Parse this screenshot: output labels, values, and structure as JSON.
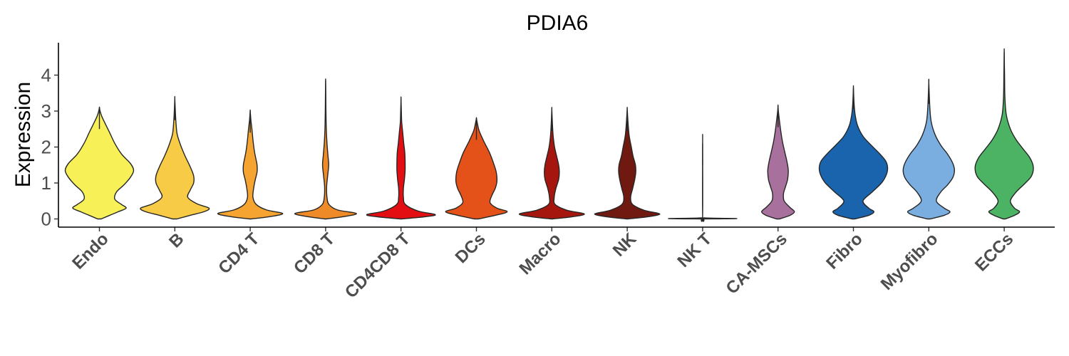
{
  "chart_data": {
    "type": "violin",
    "title": "PDIA6",
    "xlabel": "",
    "ylabel": "Expression",
    "ylim": [
      -0.2,
      4.85
    ],
    "yticks": [
      "0",
      "1",
      "2",
      "3",
      "4"
    ],
    "ytick_values": [
      0,
      1,
      2,
      3,
      4
    ],
    "grid": false,
    "legend": "none",
    "categories": [
      "Endo",
      "B",
      "CD4 T",
      "CD8 T",
      "CD4CD8 T",
      "DCs",
      "Macro",
      "NK",
      "NK T",
      "CA-MSCs",
      "Fibro",
      "Myofibro",
      "ECCs"
    ],
    "series": [
      {
        "category": "Endo",
        "color": "#F7F057",
        "max": 3.1,
        "density": [
          [
            0,
            0.05
          ],
          [
            0.1,
            0.3
          ],
          [
            0.2,
            0.55
          ],
          [
            0.3,
            0.78
          ],
          [
            0.4,
            0.65
          ],
          [
            0.55,
            0.45
          ],
          [
            0.75,
            0.5
          ],
          [
            0.95,
            0.72
          ],
          [
            1.15,
            0.9
          ],
          [
            1.35,
            1.0
          ],
          [
            1.55,
            0.9
          ],
          [
            1.8,
            0.65
          ],
          [
            2.1,
            0.45
          ],
          [
            2.4,
            0.3
          ],
          [
            2.65,
            0.17
          ],
          [
            2.85,
            0.07
          ],
          [
            3.0,
            0.02
          ],
          [
            3.1,
            0.0
          ]
        ]
      },
      {
        "category": "B",
        "color": "#F7CB45",
        "max": 3.35,
        "density": [
          [
            0,
            0.06
          ],
          [
            0.1,
            0.45
          ],
          [
            0.2,
            0.85
          ],
          [
            0.3,
            1.0
          ],
          [
            0.42,
            0.65
          ],
          [
            0.6,
            0.38
          ],
          [
            0.8,
            0.45
          ],
          [
            1.0,
            0.55
          ],
          [
            1.2,
            0.55
          ],
          [
            1.45,
            0.45
          ],
          [
            1.75,
            0.3
          ],
          [
            2.05,
            0.17
          ],
          [
            2.35,
            0.07
          ],
          [
            2.6,
            0.04
          ],
          [
            2.9,
            0.02
          ],
          [
            3.35,
            0.0
          ]
        ]
      },
      {
        "category": "CD4 T",
        "color": "#F5A431",
        "max": 3.0,
        "density": [
          [
            0,
            0.02
          ],
          [
            0.06,
            0.55
          ],
          [
            0.15,
            0.95
          ],
          [
            0.25,
            0.48
          ],
          [
            0.4,
            0.18
          ],
          [
            0.6,
            0.08
          ],
          [
            0.85,
            0.1
          ],
          [
            1.1,
            0.15
          ],
          [
            1.3,
            0.2
          ],
          [
            1.5,
            0.2
          ],
          [
            1.7,
            0.16
          ],
          [
            1.9,
            0.12
          ],
          [
            2.2,
            0.08
          ],
          [
            2.5,
            0.05
          ],
          [
            2.75,
            0.02
          ],
          [
            3.0,
            0.0
          ]
        ]
      },
      {
        "category": "CD8 T",
        "color": "#EE8A27",
        "max": 3.85,
        "density": [
          [
            0,
            0.02
          ],
          [
            0.06,
            0.5
          ],
          [
            0.15,
            0.9
          ],
          [
            0.25,
            0.35
          ],
          [
            0.4,
            0.1
          ],
          [
            0.6,
            0.04
          ],
          [
            0.9,
            0.03
          ],
          [
            1.2,
            0.06
          ],
          [
            1.5,
            0.09
          ],
          [
            1.75,
            0.07
          ],
          [
            2.1,
            0.04
          ],
          [
            2.5,
            0.02
          ],
          [
            3.0,
            0.01
          ],
          [
            3.5,
            0.005
          ],
          [
            3.85,
            0.0
          ]
        ]
      },
      {
        "category": "CD4CD8 T",
        "color": "#E20E12",
        "max": 3.35,
        "density": [
          [
            0,
            0.02
          ],
          [
            0.06,
            0.7
          ],
          [
            0.12,
            1.0
          ],
          [
            0.22,
            0.5
          ],
          [
            0.4,
            0.13
          ],
          [
            0.6,
            0.07
          ],
          [
            0.85,
            0.07
          ],
          [
            1.1,
            0.1
          ],
          [
            1.35,
            0.12
          ],
          [
            1.6,
            0.12
          ],
          [
            1.85,
            0.11
          ],
          [
            2.1,
            0.08
          ],
          [
            2.4,
            0.05
          ],
          [
            2.7,
            0.02
          ],
          [
            3.0,
            0.01
          ],
          [
            3.35,
            0.0
          ]
        ]
      },
      {
        "category": "DCs",
        "color": "#E45219",
        "max": 2.8,
        "density": [
          [
            0,
            0.06
          ],
          [
            0.1,
            0.55
          ],
          [
            0.2,
            0.9
          ],
          [
            0.3,
            0.6
          ],
          [
            0.45,
            0.4
          ],
          [
            0.65,
            0.45
          ],
          [
            0.85,
            0.55
          ],
          [
            1.05,
            0.6
          ],
          [
            1.3,
            0.58
          ],
          [
            1.55,
            0.5
          ],
          [
            1.85,
            0.38
          ],
          [
            2.15,
            0.22
          ],
          [
            2.45,
            0.08
          ],
          [
            2.65,
            0.03
          ],
          [
            2.8,
            0.0
          ]
        ]
      },
      {
        "category": "Macro",
        "color": "#A5170E",
        "max": 3.05,
        "density": [
          [
            0,
            0.02
          ],
          [
            0.06,
            0.6
          ],
          [
            0.14,
            0.95
          ],
          [
            0.24,
            0.45
          ],
          [
            0.4,
            0.1
          ],
          [
            0.6,
            0.07
          ],
          [
            0.85,
            0.12
          ],
          [
            1.1,
            0.2
          ],
          [
            1.3,
            0.22
          ],
          [
            1.5,
            0.2
          ],
          [
            1.75,
            0.14
          ],
          [
            2.0,
            0.08
          ],
          [
            2.3,
            0.04
          ],
          [
            2.6,
            0.02
          ],
          [
            3.05,
            0.0
          ]
        ]
      },
      {
        "category": "NK",
        "color": "#6F1910",
        "max": 3.05,
        "density": [
          [
            0,
            0.02
          ],
          [
            0.06,
            0.6
          ],
          [
            0.14,
            0.95
          ],
          [
            0.24,
            0.5
          ],
          [
            0.4,
            0.16
          ],
          [
            0.6,
            0.1
          ],
          [
            0.85,
            0.16
          ],
          [
            1.1,
            0.22
          ],
          [
            1.3,
            0.25
          ],
          [
            1.5,
            0.24
          ],
          [
            1.75,
            0.17
          ],
          [
            2.0,
            0.12
          ],
          [
            2.3,
            0.06
          ],
          [
            2.6,
            0.03
          ],
          [
            3.05,
            0.0
          ]
        ]
      },
      {
        "category": "NK T",
        "color": "#5B1210",
        "max": 2.1,
        "density": [
          [
            0,
            0.0
          ],
          [
            0.01,
            1.0
          ],
          [
            0.03,
            0.05
          ],
          [
            0.1,
            0.0
          ],
          [
            2.1,
            0.0
          ]
        ]
      },
      {
        "category": "CA-MSCs",
        "color": "#A8709C",
        "max": 3.15,
        "density": [
          [
            0,
            0.04
          ],
          [
            0.1,
            0.35
          ],
          [
            0.2,
            0.48
          ],
          [
            0.32,
            0.35
          ],
          [
            0.5,
            0.18
          ],
          [
            0.7,
            0.16
          ],
          [
            0.9,
            0.22
          ],
          [
            1.1,
            0.28
          ],
          [
            1.35,
            0.3
          ],
          [
            1.6,
            0.26
          ],
          [
            1.85,
            0.2
          ],
          [
            2.15,
            0.13
          ],
          [
            2.45,
            0.08
          ],
          [
            2.75,
            0.04
          ],
          [
            3.0,
            0.01
          ],
          [
            3.15,
            0.0
          ]
        ]
      },
      {
        "category": "Fibro",
        "color": "#1A64AE",
        "max": 3.65,
        "density": [
          [
            0,
            0.04
          ],
          [
            0.1,
            0.45
          ],
          [
            0.2,
            0.6
          ],
          [
            0.3,
            0.45
          ],
          [
            0.5,
            0.28
          ],
          [
            0.75,
            0.55
          ],
          [
            1.0,
            0.82
          ],
          [
            1.2,
            0.95
          ],
          [
            1.4,
            1.0
          ],
          [
            1.6,
            0.95
          ],
          [
            1.8,
            0.78
          ],
          [
            2.05,
            0.52
          ],
          [
            2.3,
            0.28
          ],
          [
            2.6,
            0.12
          ],
          [
            2.9,
            0.05
          ],
          [
            3.2,
            0.02
          ],
          [
            3.65,
            0.0
          ]
        ]
      },
      {
        "category": "Myofibro",
        "color": "#7BAEE0",
        "max": 3.8,
        "density": [
          [
            0,
            0.04
          ],
          [
            0.1,
            0.45
          ],
          [
            0.2,
            0.62
          ],
          [
            0.3,
            0.45
          ],
          [
            0.5,
            0.22
          ],
          [
            0.75,
            0.35
          ],
          [
            0.95,
            0.55
          ],
          [
            1.15,
            0.7
          ],
          [
            1.35,
            0.75
          ],
          [
            1.55,
            0.7
          ],
          [
            1.8,
            0.55
          ],
          [
            2.05,
            0.35
          ],
          [
            2.35,
            0.18
          ],
          [
            2.7,
            0.07
          ],
          [
            3.1,
            0.03
          ],
          [
            3.8,
            0.0
          ]
        ]
      },
      {
        "category": "ECCs",
        "color": "#4CB264",
        "max": 4.65,
        "density": [
          [
            0,
            0.03
          ],
          [
            0.1,
            0.3
          ],
          [
            0.2,
            0.45
          ],
          [
            0.3,
            0.3
          ],
          [
            0.5,
            0.18
          ],
          [
            0.75,
            0.35
          ],
          [
            1.0,
            0.62
          ],
          [
            1.2,
            0.8
          ],
          [
            1.45,
            0.85
          ],
          [
            1.7,
            0.75
          ],
          [
            1.95,
            0.55
          ],
          [
            2.2,
            0.35
          ],
          [
            2.5,
            0.18
          ],
          [
            2.9,
            0.06
          ],
          [
            3.4,
            0.02
          ],
          [
            4.0,
            0.01
          ],
          [
            4.65,
            0.0
          ]
        ]
      }
    ]
  }
}
